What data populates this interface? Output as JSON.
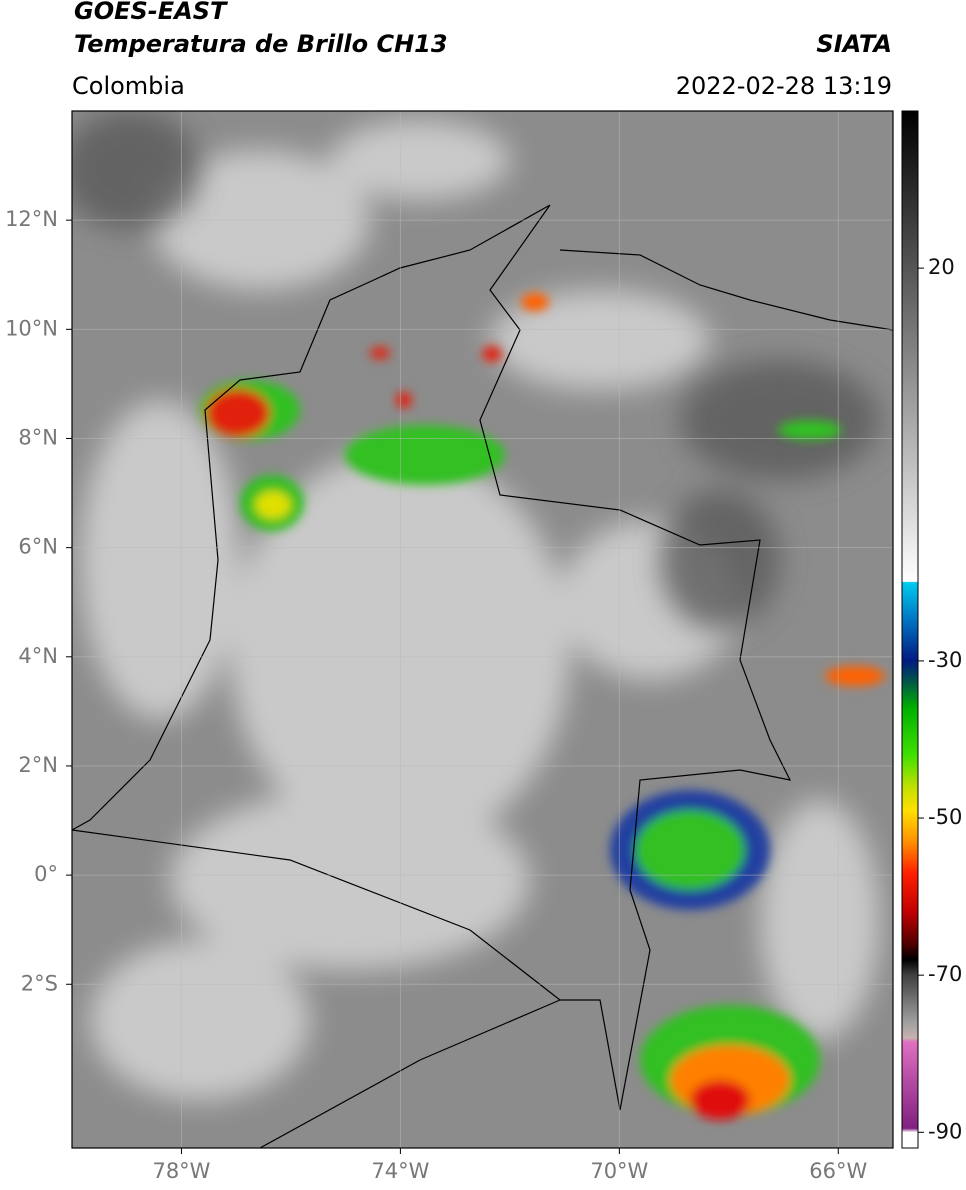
{
  "header": {
    "title": "GOES-EAST",
    "subtitle": "Temperatura de Brillo CH13",
    "source": "SIATA",
    "region": "Colombia",
    "datetime": "2022-02-28 13:19"
  },
  "map": {
    "xlim": [
      -80,
      -65
    ],
    "ylim": [
      -5,
      14
    ],
    "grid": true,
    "xticks": [
      {
        "value": -78,
        "label": "78°W"
      },
      {
        "value": -74,
        "label": "74°W"
      },
      {
        "value": -70,
        "label": "70°W"
      },
      {
        "value": -66,
        "label": "66°W"
      }
    ],
    "yticks": [
      {
        "value": 12,
        "label": "12°N"
      },
      {
        "value": 10,
        "label": "10°N"
      },
      {
        "value": 8,
        "label": "8°N"
      },
      {
        "value": 6,
        "label": "6°N"
      },
      {
        "value": 4,
        "label": "4°N"
      },
      {
        "value": 2,
        "label": "2°N"
      },
      {
        "value": 0,
        "label": "0°"
      },
      {
        "value": -2,
        "label": "2°S"
      }
    ]
  },
  "colorbar": {
    "lim": [
      -92,
      40
    ],
    "ticks": [
      20,
      -30,
      -50,
      -70,
      -90
    ],
    "colormap": [
      {
        "value": 40,
        "color": "#000000"
      },
      {
        "value": -19.9,
        "color": "#ffffff"
      },
      {
        "value": -20,
        "color": "#00ccee"
      },
      {
        "value": -25,
        "color": "#0070c0"
      },
      {
        "value": -30,
        "color": "#001a80"
      },
      {
        "value": -33,
        "color": "#006040"
      },
      {
        "value": -36,
        "color": "#00b000"
      },
      {
        "value": -42,
        "color": "#40e000"
      },
      {
        "value": -46,
        "color": "#c0e000"
      },
      {
        "value": -49,
        "color": "#ffe000"
      },
      {
        "value": -53,
        "color": "#ff9000"
      },
      {
        "value": -57,
        "color": "#ff2000"
      },
      {
        "value": -62,
        "color": "#c00000"
      },
      {
        "value": -66,
        "color": "#500000"
      },
      {
        "value": -68,
        "color": "#000000"
      },
      {
        "value": -70,
        "color": "#404040"
      },
      {
        "value": -76,
        "color": "#a0a0a0"
      },
      {
        "value": -78,
        "color": "#c8b0b0"
      },
      {
        "value": -78.5,
        "color": "#e070c0"
      },
      {
        "value": -89.5,
        "color": "#802080"
      },
      {
        "value": -90,
        "color": "#ffffff"
      },
      {
        "value": -92,
        "color": "#ffffff"
      }
    ]
  }
}
